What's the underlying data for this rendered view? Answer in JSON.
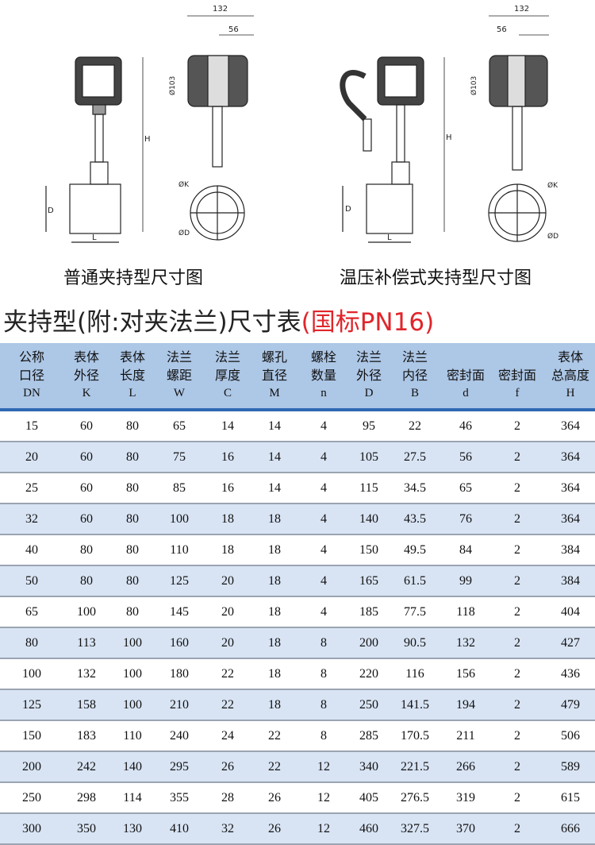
{
  "drawings": {
    "left": {
      "caption": "普通夹持型尺寸图",
      "dims": {
        "width_top": "132",
        "width_sub": "56",
        "diameter": "Ø103",
        "height": "H",
        "pipe": "D",
        "length": "L",
        "k": "ØK",
        "d": "ØD"
      }
    },
    "right": {
      "caption": "温压补偿式夹持型尺寸图",
      "dims": {
        "width_top": "132",
        "width_sub": "56",
        "diameter": "Ø103",
        "height": "H",
        "pipe": "D",
        "length": "L",
        "k": "ØK",
        "d": "ØD"
      }
    }
  },
  "title": {
    "main": "夹持型(附:对夹法兰)尺寸表",
    "standard": "(国标PN16)",
    "accent_color": "#e0252b"
  },
  "table": {
    "header_color": "#adc7e6",
    "stripe_color": "#d8e4f4",
    "columns": [
      {
        "l1": "公称",
        "l2": "口径",
        "sym": "DN"
      },
      {
        "l1": "表体",
        "l2": "外径",
        "sym": "K"
      },
      {
        "l1": "表体",
        "l2": "长度",
        "sym": "L"
      },
      {
        "l1": "法兰",
        "l2": "螺距",
        "sym": "W"
      },
      {
        "l1": "法兰",
        "l2": "厚度",
        "sym": "C"
      },
      {
        "l1": "螺孔",
        "l2": "直径",
        "sym": "M"
      },
      {
        "l1": "螺栓",
        "l2": "数量",
        "sym": "n"
      },
      {
        "l1": "法兰",
        "l2": "外径",
        "sym": "D"
      },
      {
        "l1": "法兰",
        "l2": "内径",
        "sym": "B"
      },
      {
        "l1": "",
        "l2": "密封面",
        "sym": "d"
      },
      {
        "l1": "",
        "l2": "密封面",
        "sym": "f"
      },
      {
        "l1": "表体",
        "l2": "总高度",
        "sym": "H"
      }
    ],
    "rows": [
      [
        "15",
        "60",
        "80",
        "65",
        "14",
        "14",
        "4",
        "95",
        "22",
        "46",
        "2",
        "364"
      ],
      [
        "20",
        "60",
        "80",
        "75",
        "16",
        "14",
        "4",
        "105",
        "27.5",
        "56",
        "2",
        "364"
      ],
      [
        "25",
        "60",
        "80",
        "85",
        "16",
        "14",
        "4",
        "115",
        "34.5",
        "65",
        "2",
        "364"
      ],
      [
        "32",
        "60",
        "80",
        "100",
        "18",
        "18",
        "4",
        "140",
        "43.5",
        "76",
        "2",
        "364"
      ],
      [
        "40",
        "80",
        "80",
        "110",
        "18",
        "18",
        "4",
        "150",
        "49.5",
        "84",
        "2",
        "384"
      ],
      [
        "50",
        "80",
        "80",
        "125",
        "20",
        "18",
        "4",
        "165",
        "61.5",
        "99",
        "2",
        "384"
      ],
      [
        "65",
        "100",
        "80",
        "145",
        "20",
        "18",
        "4",
        "185",
        "77.5",
        "118",
        "2",
        "404"
      ],
      [
        "80",
        "113",
        "100",
        "160",
        "20",
        "18",
        "8",
        "200",
        "90.5",
        "132",
        "2",
        "427"
      ],
      [
        "100",
        "132",
        "100",
        "180",
        "22",
        "18",
        "8",
        "220",
        "116",
        "156",
        "2",
        "436"
      ],
      [
        "125",
        "158",
        "100",
        "210",
        "22",
        "18",
        "8",
        "250",
        "141.5",
        "194",
        "2",
        "479"
      ],
      [
        "150",
        "183",
        "110",
        "240",
        "24",
        "22",
        "8",
        "285",
        "170.5",
        "211",
        "2",
        "506"
      ],
      [
        "200",
        "242",
        "140",
        "295",
        "26",
        "22",
        "12",
        "340",
        "221.5",
        "266",
        "2",
        "589"
      ],
      [
        "250",
        "298",
        "114",
        "355",
        "28",
        "26",
        "12",
        "405",
        "276.5",
        "319",
        "2",
        "615"
      ],
      [
        "300",
        "350",
        "130",
        "410",
        "32",
        "26",
        "12",
        "460",
        "327.5",
        "370",
        "2",
        "666"
      ]
    ]
  }
}
